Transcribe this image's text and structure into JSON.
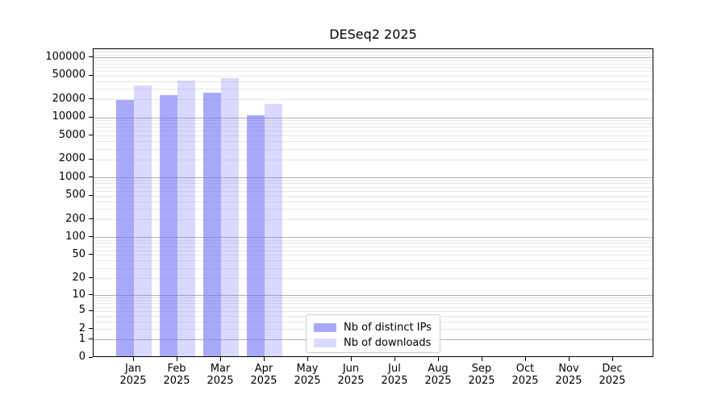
{
  "title": "DESeq2 2025",
  "legend": {
    "items": [
      {
        "label": "Nb of distinct IPs",
        "color": "#a9a9f9"
      },
      {
        "label": "Nb of downloads",
        "color": "#dadafa"
      }
    ]
  },
  "chart_data": {
    "type": "bar",
    "title": "DESeq2 2025",
    "categories": [
      "Jan 2025",
      "Feb 2025",
      "Mar 2025",
      "Apr 2025",
      "May 2025",
      "Jun 2025",
      "Jul 2025",
      "Aug 2025",
      "Sep 2025",
      "Oct 2025",
      "Nov 2025",
      "Dec 2025"
    ],
    "months": [
      "Jan",
      "Feb",
      "Mar",
      "Apr",
      "May",
      "Jun",
      "Jul",
      "Aug",
      "Sep",
      "Oct",
      "Nov",
      "Dec"
    ],
    "year": "2025",
    "series": [
      {
        "name": "Nb of distinct IPs",
        "color": "rgba(116,116,248,0.62)",
        "values": [
          19000,
          22900,
          24500,
          10450,
          null,
          null,
          null,
          null,
          null,
          null,
          null,
          null
        ]
      },
      {
        "name": "Nb of downloads",
        "color": "rgba(116,116,248,0.27)",
        "values": [
          32400,
          39500,
          42800,
          16100,
          null,
          null,
          null,
          null,
          null,
          null,
          null,
          null
        ]
      }
    ],
    "yscale": "log1p",
    "yticks": [
      0,
      1,
      2,
      5,
      10,
      20,
      50,
      100,
      200,
      500,
      1000,
      2000,
      5000,
      10000,
      20000,
      50000,
      100000
    ],
    "ylim": [
      0,
      137000
    ],
    "xlabel": "",
    "ylabel": "",
    "grid": "horizontal, major gray at powers of 10, light minors",
    "legend_position": "lower center",
    "grid_major_color": "#b0b0b0",
    "grid_minor_color": "#e8e8e8"
  }
}
